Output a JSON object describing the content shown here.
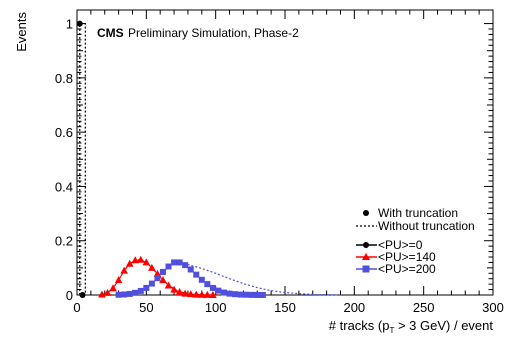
{
  "chart_data": {
    "type": "line",
    "title": "CMS",
    "subtitle": "Preliminary Simulation, Phase-2",
    "xlabel_pre": "# tracks (p",
    "xlabel_sub": "T",
    "xlabel_post": " > 3 GeV) / event",
    "ylabel": "Events",
    "xlim": [
      0,
      300
    ],
    "ylim": [
      0,
      1.05
    ],
    "x_ticks": [
      0,
      50,
      100,
      150,
      200,
      250,
      300
    ],
    "x_tick_labels": [
      "0",
      "50",
      "100",
      "150",
      "200",
      "250",
      "300"
    ],
    "y_ticks": [
      0,
      0.2,
      0.4,
      0.6,
      0.8,
      1
    ],
    "y_tick_labels": [
      "0",
      "0.2",
      "0.4",
      "0.6",
      "0.8",
      "1"
    ],
    "grid": false,
    "legend_position": "bottom-right",
    "legend_style": [
      {
        "label": "With truncation",
        "marker": "circle",
        "line": "none"
      },
      {
        "label": "Without truncation",
        "marker": "none",
        "line": "dotted"
      }
    ],
    "legend_samples": [
      {
        "label": "<PU>=0",
        "color": "#000000",
        "marker": "circle"
      },
      {
        "label": "<PU>=140",
        "color": "#ff0000",
        "marker": "triangle"
      },
      {
        "label": "<PU>=200",
        "color": "#5050e0",
        "marker": "square"
      }
    ],
    "series": [
      {
        "name": "<PU>=0",
        "color": "#000000",
        "marker": "circle",
        "with_truncation": {
          "x": [
            2,
            4
          ],
          "y": [
            1.0,
            0.0
          ]
        },
        "without_truncation": {
          "x": [
            2,
            2,
            4,
            6,
            6
          ],
          "y": [
            0,
            1.0,
            1.0,
            1.0,
            0
          ]
        }
      },
      {
        "name": "<PU>=140",
        "color": "#ff0000",
        "marker": "triangle",
        "with_truncation": {
          "x": [
            18,
            22,
            26,
            30,
            34,
            38,
            42,
            46,
            50,
            54,
            58,
            62,
            66,
            70,
            74,
            78,
            82,
            86,
            90,
            94,
            98
          ],
          "y": [
            0.002,
            0.008,
            0.025,
            0.055,
            0.09,
            0.115,
            0.128,
            0.13,
            0.12,
            0.1,
            0.078,
            0.055,
            0.035,
            0.02,
            0.011,
            0.005,
            0.003,
            0.0015,
            0.001,
            0.0005,
            0.0
          ]
        },
        "without_truncation": {
          "x": [
            18,
            22,
            26,
            30,
            34,
            38,
            42,
            46,
            50,
            54,
            58,
            62,
            66,
            70,
            74,
            78,
            82,
            86,
            90,
            94,
            98,
            102
          ],
          "y": [
            0.002,
            0.008,
            0.025,
            0.055,
            0.09,
            0.115,
            0.128,
            0.13,
            0.12,
            0.1,
            0.078,
            0.056,
            0.037,
            0.023,
            0.013,
            0.007,
            0.004,
            0.002,
            0.001,
            0.0005,
            0.0002,
            0.0
          ]
        }
      },
      {
        "name": "<PU>=200",
        "color": "#5050e0",
        "marker": "square",
        "with_truncation": {
          "x": [
            30,
            34,
            38,
            42,
            46,
            50,
            54,
            58,
            62,
            66,
            70,
            74,
            78,
            82,
            86,
            90,
            94,
            98,
            102,
            106,
            110,
            114,
            118,
            122,
            126,
            130,
            134
          ],
          "y": [
            0.001,
            0.002,
            0.004,
            0.008,
            0.015,
            0.026,
            0.042,
            0.062,
            0.085,
            0.105,
            0.12,
            0.12,
            0.11,
            0.094,
            0.075,
            0.056,
            0.04,
            0.026,
            0.016,
            0.009,
            0.005,
            0.003,
            0.0015,
            0.001,
            0.0005,
            0.0002,
            0.0
          ]
        },
        "without_truncation": {
          "x": [
            30,
            38,
            46,
            54,
            62,
            70,
            74,
            80,
            90,
            100,
            110,
            120,
            130,
            140,
            150,
            160,
            170,
            180,
            190
          ],
          "y": [
            0.001,
            0.004,
            0.015,
            0.042,
            0.085,
            0.118,
            0.12,
            0.112,
            0.098,
            0.08,
            0.06,
            0.042,
            0.027,
            0.016,
            0.009,
            0.005,
            0.002,
            0.001,
            0.0
          ]
        }
      }
    ]
  }
}
